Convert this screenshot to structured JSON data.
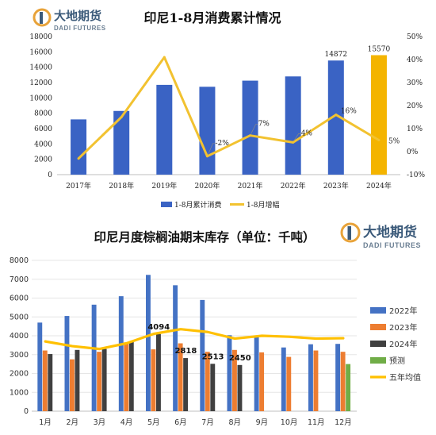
{
  "logo": {
    "cn": "大地期货",
    "en": "DADI FUTURES",
    "accent": "#E8A33A",
    "brand": "#3B5A7A"
  },
  "chart_data": [
    {
      "type": "bar",
      "title": "印尼1-8月消费累计情况",
      "categories": [
        "2017年",
        "2018年",
        "2019年",
        "2020年",
        "2021年",
        "2022年",
        "2023年",
        "2024年"
      ],
      "ylim": [
        0,
        18000
      ],
      "y_ticks": [
        "0",
        "2000",
        "4000",
        "6000",
        "8000",
        "10000",
        "12000",
        "14000",
        "16000",
        "18000"
      ],
      "y2lim": [
        -10,
        50
      ],
      "y2_ticks": [
        "-10%",
        "0%",
        "10%",
        "20%",
        "30%",
        "40%",
        "50%"
      ],
      "legend_position": "bottom",
      "series": [
        {
          "name": "1-8月累计消费",
          "kind": "bar",
          "color": "#3A63C4",
          "values": [
            7200,
            8300,
            11700,
            11450,
            12250,
            12800,
            14872,
            15570
          ],
          "highlight_last_color": "#F4B400",
          "data_labels": {
            "6": "14872",
            "7": "15570"
          }
        },
        {
          "name": "1-8月增幅",
          "kind": "line",
          "axis": "right",
          "color": "#F2C230",
          "values": [
            -3,
            15,
            41,
            -2,
            7,
            4,
            16,
            5
          ],
          "data_labels": {
            "3": "-2%",
            "4": "7%",
            "5": "4%",
            "6": "16%",
            "7": "5%"
          }
        }
      ]
    },
    {
      "type": "bar",
      "title": "印尼月度棕榈油期末库存（单位：千吨）",
      "categories": [
        "1月",
        "2月",
        "3月",
        "4月",
        "5月",
        "6月",
        "7月",
        "8月",
        "9月",
        "10月",
        "11月",
        "12月"
      ],
      "ylim": [
        0,
        8000
      ],
      "y_ticks": [
        "0",
        "1000",
        "2000",
        "3000",
        "4000",
        "5000",
        "6000",
        "7000",
        "8000"
      ],
      "legend_position": "right",
      "series": [
        {
          "name": "2022年",
          "kind": "bar",
          "color": "#4472C4",
          "values": [
            4700,
            5050,
            5650,
            6100,
            7230,
            6680,
            5900,
            4030,
            4020,
            3380,
            3550,
            3570
          ]
        },
        {
          "name": "2023年",
          "kind": "bar",
          "color": "#ED7D31",
          "values": [
            3220,
            2750,
            3150,
            3650,
            3280,
            3600,
            3150,
            3250,
            3120,
            2880,
            3220,
            3150
          ]
        },
        {
          "name": "2024年",
          "kind": "bar",
          "color": "#404040",
          "values": [
            3030,
            3250,
            3300,
            3700,
            4094,
            2818,
            2513,
            2450,
            null,
            null,
            null,
            null
          ],
          "data_labels": {
            "4": "4094",
            "5": "2818",
            "6": "2513",
            "7": "2450"
          }
        },
        {
          "name": "预测",
          "kind": "bar",
          "color": "#70AD47",
          "values": [
            null,
            null,
            null,
            null,
            null,
            null,
            null,
            null,
            null,
            null,
            null,
            2500
          ]
        },
        {
          "name": "五年均值",
          "kind": "line",
          "color": "#FFC000",
          "values": [
            3700,
            3450,
            3300,
            3600,
            4100,
            4350,
            4200,
            3850,
            4000,
            3950,
            3850,
            3870
          ]
        }
      ]
    }
  ]
}
